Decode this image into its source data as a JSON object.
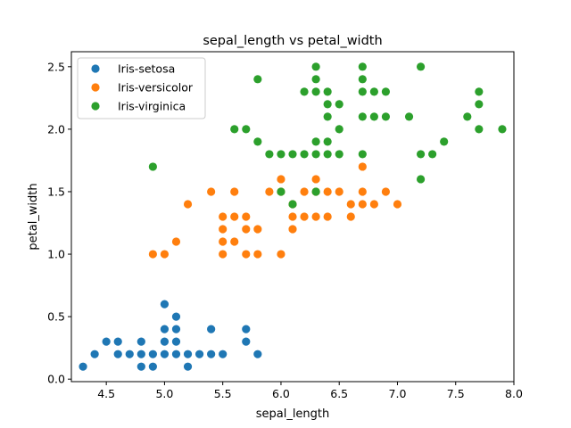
{
  "chart_data": {
    "type": "scatter",
    "title": "sepal_length vs petal_width",
    "xlabel": "sepal_length",
    "ylabel": "petal_width",
    "xlim": [
      4.2,
      8.0
    ],
    "ylim": [
      -0.02,
      2.62
    ],
    "xticks": [
      4.5,
      5.0,
      5.5,
      6.0,
      6.5,
      7.0,
      7.5,
      8.0
    ],
    "xtick_labels": [
      "4.5",
      "5.0",
      "5.5",
      "6.0",
      "6.5",
      "7.0",
      "7.5",
      "8.0"
    ],
    "yticks": [
      0.0,
      0.5,
      1.0,
      1.5,
      2.0,
      2.5
    ],
    "ytick_labels": [
      "0.0",
      "0.5",
      "1.0",
      "1.5",
      "2.0",
      "2.5"
    ],
    "grid": false,
    "legend_position": "top-left",
    "series": [
      {
        "name": "Iris-setosa",
        "color": "#1f77b4",
        "points": [
          [
            4.3,
            0.1
          ],
          [
            4.4,
            0.2
          ],
          [
            4.5,
            0.3
          ],
          [
            4.6,
            0.3
          ],
          [
            4.6,
            0.2
          ],
          [
            4.7,
            0.2
          ],
          [
            4.8,
            0.3
          ],
          [
            4.8,
            0.2
          ],
          [
            4.8,
            0.1
          ],
          [
            4.9,
            0.2
          ],
          [
            4.9,
            0.1
          ],
          [
            5.0,
            0.6
          ],
          [
            5.0,
            0.4
          ],
          [
            5.0,
            0.3
          ],
          [
            5.0,
            0.2
          ],
          [
            5.1,
            0.5
          ],
          [
            5.1,
            0.4
          ],
          [
            5.1,
            0.3
          ],
          [
            5.1,
            0.2
          ],
          [
            5.2,
            0.2
          ],
          [
            5.2,
            0.1
          ],
          [
            5.3,
            0.2
          ],
          [
            5.4,
            0.4
          ],
          [
            5.4,
            0.2
          ],
          [
            5.5,
            0.2
          ],
          [
            5.7,
            0.4
          ],
          [
            5.7,
            0.3
          ],
          [
            5.8,
            0.2
          ]
        ]
      },
      {
        "name": "Iris-versicolor",
        "color": "#ff7f0e",
        "points": [
          [
            4.9,
            1.0
          ],
          [
            5.0,
            1.0
          ],
          [
            5.1,
            1.1
          ],
          [
            5.2,
            1.4
          ],
          [
            5.4,
            1.5
          ],
          [
            5.5,
            1.3
          ],
          [
            5.5,
            1.2
          ],
          [
            5.5,
            1.1
          ],
          [
            5.5,
            1.0
          ],
          [
            5.6,
            1.5
          ],
          [
            5.6,
            1.3
          ],
          [
            5.6,
            1.1
          ],
          [
            5.7,
            1.3
          ],
          [
            5.7,
            1.2
          ],
          [
            5.7,
            1.0
          ],
          [
            5.8,
            1.2
          ],
          [
            5.8,
            1.0
          ],
          [
            5.9,
            1.5
          ],
          [
            6.0,
            1.6
          ],
          [
            6.0,
            1.5
          ],
          [
            6.0,
            1.0
          ],
          [
            6.1,
            1.4
          ],
          [
            6.1,
            1.3
          ],
          [
            6.1,
            1.2
          ],
          [
            6.2,
            1.5
          ],
          [
            6.2,
            1.3
          ],
          [
            6.3,
            1.6
          ],
          [
            6.3,
            1.5
          ],
          [
            6.3,
            1.3
          ],
          [
            6.4,
            1.5
          ],
          [
            6.4,
            1.3
          ],
          [
            6.5,
            1.5
          ],
          [
            6.6,
            1.4
          ],
          [
            6.6,
            1.3
          ],
          [
            6.7,
            1.7
          ],
          [
            6.7,
            1.5
          ],
          [
            6.7,
            1.4
          ],
          [
            6.8,
            1.4
          ],
          [
            6.9,
            1.5
          ],
          [
            7.0,
            1.4
          ]
        ]
      },
      {
        "name": "Iris-virginica",
        "color": "#2ca02c",
        "points": [
          [
            4.9,
            1.7
          ],
          [
            5.6,
            2.0
          ],
          [
            5.7,
            2.0
          ],
          [
            5.8,
            2.4
          ],
          [
            5.8,
            1.9
          ],
          [
            5.9,
            1.8
          ],
          [
            6.0,
            1.8
          ],
          [
            6.0,
            1.5
          ],
          [
            6.1,
            1.8
          ],
          [
            6.1,
            1.4
          ],
          [
            6.2,
            2.3
          ],
          [
            6.2,
            1.8
          ],
          [
            6.3,
            2.5
          ],
          [
            6.3,
            2.4
          ],
          [
            6.3,
            2.3
          ],
          [
            6.3,
            1.9
          ],
          [
            6.3,
            1.8
          ],
          [
            6.3,
            1.5
          ],
          [
            6.4,
            2.3
          ],
          [
            6.4,
            2.2
          ],
          [
            6.4,
            2.1
          ],
          [
            6.4,
            1.9
          ],
          [
            6.4,
            1.8
          ],
          [
            6.5,
            2.2
          ],
          [
            6.5,
            2.0
          ],
          [
            6.5,
            1.8
          ],
          [
            6.7,
            2.5
          ],
          [
            6.7,
            2.4
          ],
          [
            6.7,
            2.3
          ],
          [
            6.7,
            2.1
          ],
          [
            6.7,
            1.8
          ],
          [
            6.8,
            2.3
          ],
          [
            6.8,
            2.1
          ],
          [
            6.9,
            2.3
          ],
          [
            6.9,
            2.1
          ],
          [
            7.1,
            2.1
          ],
          [
            7.2,
            2.5
          ],
          [
            7.2,
            1.8
          ],
          [
            7.2,
            1.6
          ],
          [
            7.3,
            1.8
          ],
          [
            7.4,
            1.9
          ],
          [
            7.6,
            2.1
          ],
          [
            7.7,
            2.3
          ],
          [
            7.7,
            2.2
          ],
          [
            7.7,
            2.0
          ],
          [
            7.9,
            2.0
          ]
        ]
      }
    ]
  }
}
